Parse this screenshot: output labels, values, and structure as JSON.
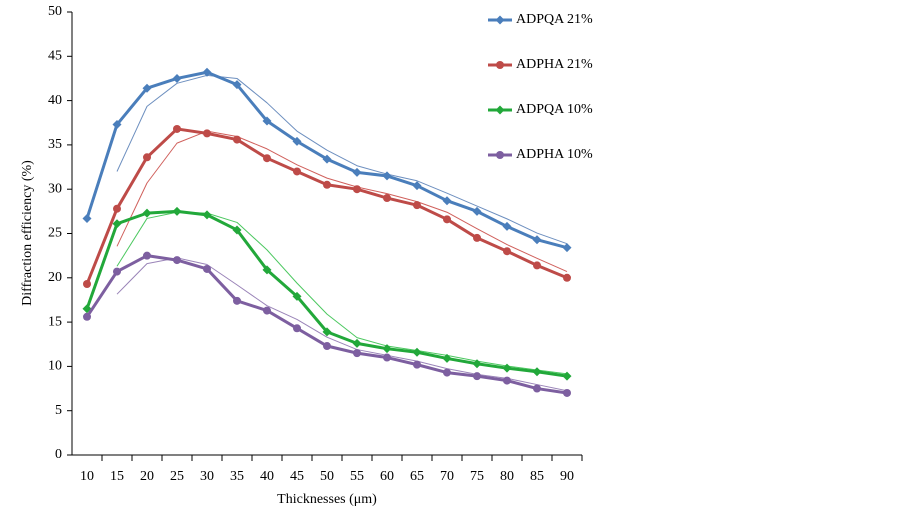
{
  "chart_data": {
    "type": "line",
    "x_label": "Thicknesses (μm)",
    "y_label": "Diffraction efficiency (%)",
    "categories": [
      "10",
      "15",
      "20",
      "25",
      "30",
      "35",
      "40",
      "45",
      "50",
      "55",
      "60",
      "65",
      "70",
      "75",
      "80",
      "85",
      "90"
    ],
    "ylim": [
      0,
      50
    ],
    "yticks": [
      0,
      5,
      10,
      15,
      20,
      25,
      30,
      35,
      40,
      45,
      50
    ],
    "grid": false,
    "legend": "right",
    "series": [
      {
        "name": "ADPQA 21%",
        "color": "#4a7ebb",
        "marker": "diamond",
        "linewidth": 3,
        "values": [
          26.7,
          37.3,
          41.4,
          42.5,
          43.2,
          41.8,
          37.7,
          35.4,
          33.4,
          31.9,
          31.5,
          30.4,
          28.7,
          27.5,
          25.8,
          24.3,
          23.4
        ]
      },
      {
        "name": "ADPHA 21%",
        "color": "#be4b48",
        "marker": "circle",
        "linewidth": 3,
        "values": [
          19.3,
          27.8,
          33.6,
          36.8,
          36.3,
          35.6,
          33.5,
          32.0,
          30.5,
          30.0,
          29.0,
          28.2,
          26.6,
          24.5,
          23.0,
          21.4,
          20.0
        ]
      },
      {
        "name": "ADPQA 10%",
        "color": "#22a83a",
        "marker": "diamond",
        "linewidth": 3,
        "values": [
          16.5,
          26.1,
          27.3,
          27.5,
          27.1,
          25.4,
          20.9,
          17.9,
          13.9,
          12.6,
          12.0,
          11.6,
          10.9,
          10.3,
          9.8,
          9.4,
          8.9
        ]
      },
      {
        "name": "ADPHA 10%",
        "color": "#7d5fa0",
        "marker": "circle",
        "linewidth": 3,
        "values": [
          15.6,
          20.7,
          22.5,
          22.0,
          21.0,
          17.4,
          16.3,
          14.3,
          12.3,
          11.5,
          11.0,
          10.2,
          9.3,
          8.9,
          8.4,
          7.5,
          7.0
        ]
      },
      {
        "color": "#6d8fbf",
        "marker": "none",
        "linewidth": 1,
        "values": [
          null,
          32.0,
          39.35,
          41.95,
          42.85,
          42.5,
          39.75,
          36.55,
          34.4,
          32.65,
          31.7,
          30.95,
          29.55,
          28.1,
          26.65,
          25.05,
          23.85
        ]
      },
      {
        "color": "#d0605c",
        "marker": "none",
        "linewidth": 1,
        "values": [
          null,
          23.55,
          30.7,
          35.2,
          36.55,
          35.95,
          34.55,
          32.75,
          31.25,
          30.25,
          29.5,
          28.6,
          27.4,
          25.55,
          23.75,
          22.2,
          20.7
        ]
      },
      {
        "color": "#4cc860",
        "marker": "none",
        "linewidth": 1,
        "values": [
          null,
          21.3,
          26.7,
          27.4,
          27.3,
          26.25,
          23.15,
          19.4,
          15.9,
          13.25,
          12.3,
          11.8,
          11.25,
          10.6,
          10.05,
          9.6,
          9.15
        ]
      },
      {
        "color": "#9a84b8",
        "marker": "none",
        "linewidth": 1,
        "values": [
          null,
          18.15,
          21.6,
          22.25,
          21.5,
          19.2,
          16.85,
          15.3,
          13.3,
          11.9,
          11.25,
          10.6,
          9.75,
          9.1,
          8.65,
          7.95,
          7.25
        ]
      }
    ]
  }
}
